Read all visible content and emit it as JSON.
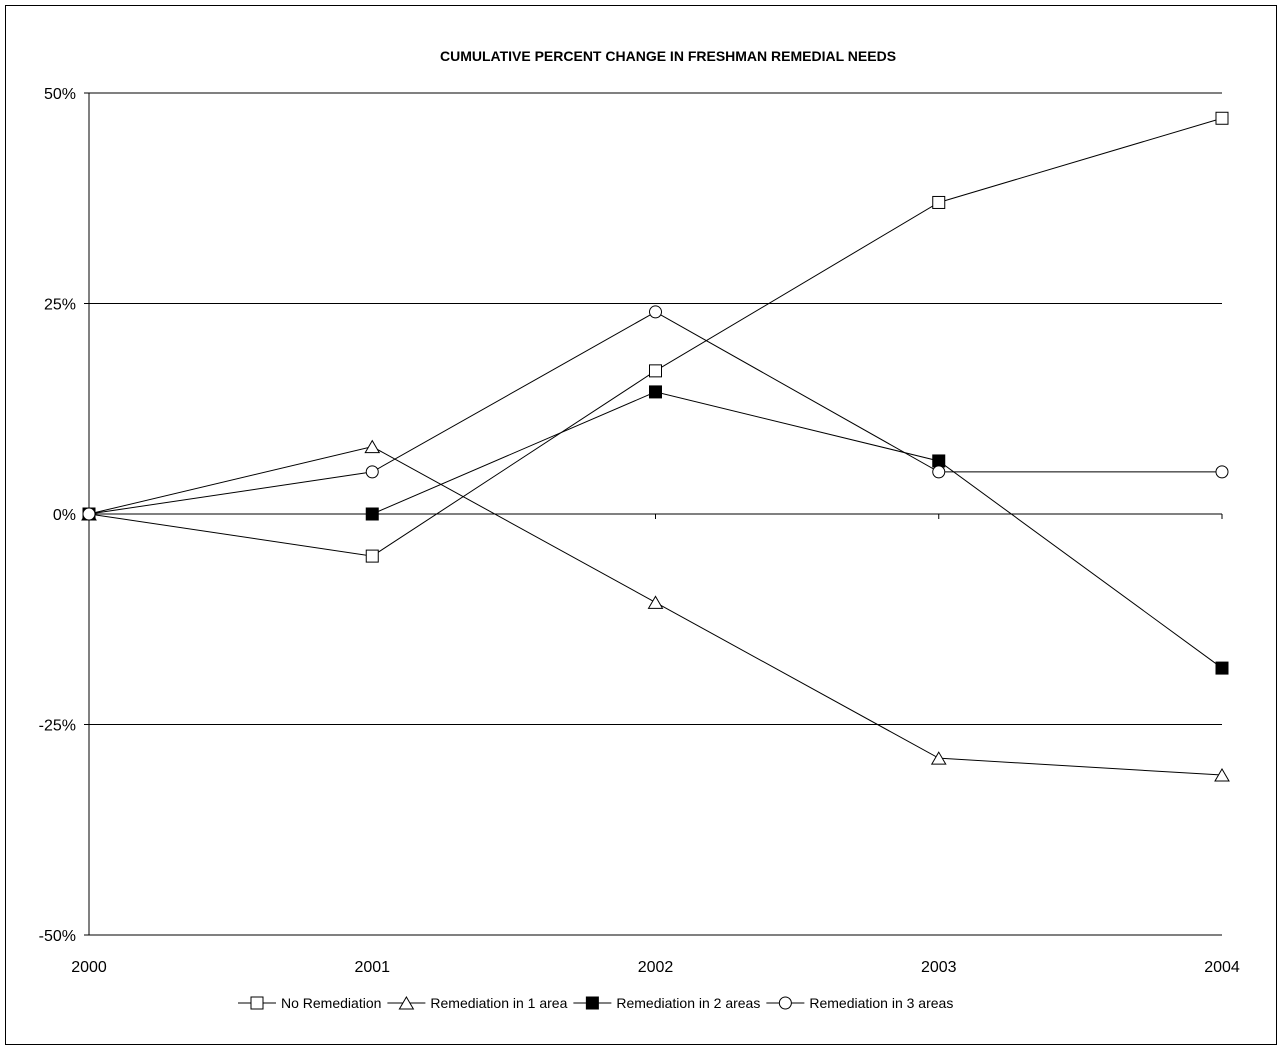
{
  "chart_data": {
    "type": "line",
    "title": "CUMULATIVE PERCENT CHANGE IN FRESHMAN REMEDIAL NEEDS",
    "xlabel": "",
    "ylabel": "",
    "x": [
      "2000",
      "2001",
      "2002",
      "2003",
      "2004"
    ],
    "ylim": [
      -50,
      50
    ],
    "yticks": [
      50,
      25,
      0,
      -25,
      -50
    ],
    "ytick_labels": [
      "50%",
      "25%",
      "0%",
      "-25%",
      "-50%"
    ],
    "grid": "horizontal",
    "legend_position": "bottom",
    "series": [
      {
        "name": "No Remediation",
        "marker": "square-open",
        "values": [
          0,
          -5,
          17,
          37,
          47
        ]
      },
      {
        "name": "Remediation in 1 area",
        "marker": "triangle-open",
        "values": [
          0,
          8,
          -10.5,
          -29,
          -31
        ]
      },
      {
        "name": "Remediation in 2 areas",
        "marker": "square-filled",
        "values": [
          0,
          0,
          14.5,
          6.3,
          -18.3
        ]
      },
      {
        "name": "Remediation in 3 areas",
        "marker": "circle-open",
        "values": [
          0,
          5,
          24,
          5,
          5
        ]
      }
    ]
  }
}
